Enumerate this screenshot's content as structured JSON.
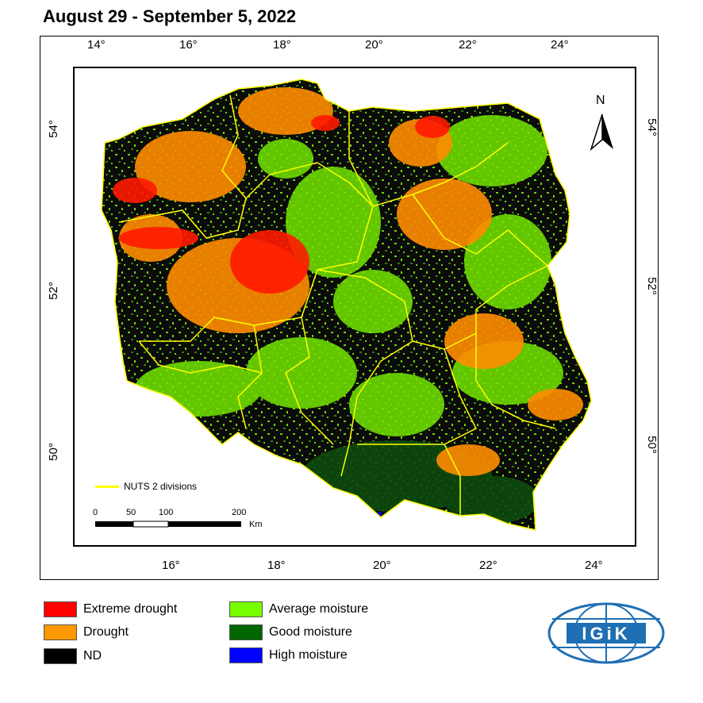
{
  "title": "August 29 - September 5, 2022",
  "top_ticks": [
    "14°",
    "16°",
    "18°",
    "20°",
    "22°",
    "24°"
  ],
  "bottom_ticks": [
    "16°",
    "18°",
    "20°",
    "22°",
    "24°"
  ],
  "left_ticks": [
    "54°",
    "52°",
    "50°"
  ],
  "right_ticks": [
    "54°",
    "52°",
    "50°"
  ],
  "north_label": "N",
  "nuts_legend": "NUTS 2 divisions",
  "scale": {
    "labels": [
      "0",
      "50",
      "100",
      "200"
    ],
    "unit": "Km"
  },
  "legend": [
    {
      "label": "Extreme drought",
      "color": "#ff0000"
    },
    {
      "label": "Drought",
      "color": "#ff9900"
    },
    {
      "label": "ND",
      "color": "#000000"
    },
    {
      "label": "Average moisture",
      "color": "#77ff00"
    },
    {
      "label": "Good moisture",
      "color": "#006600"
    },
    {
      "label": "High moisture",
      "color": "#0000ff"
    }
  ],
  "logo_text": "IGiK",
  "colors": {
    "nuts": "#ffff00",
    "logo": "#1f6fb4"
  }
}
